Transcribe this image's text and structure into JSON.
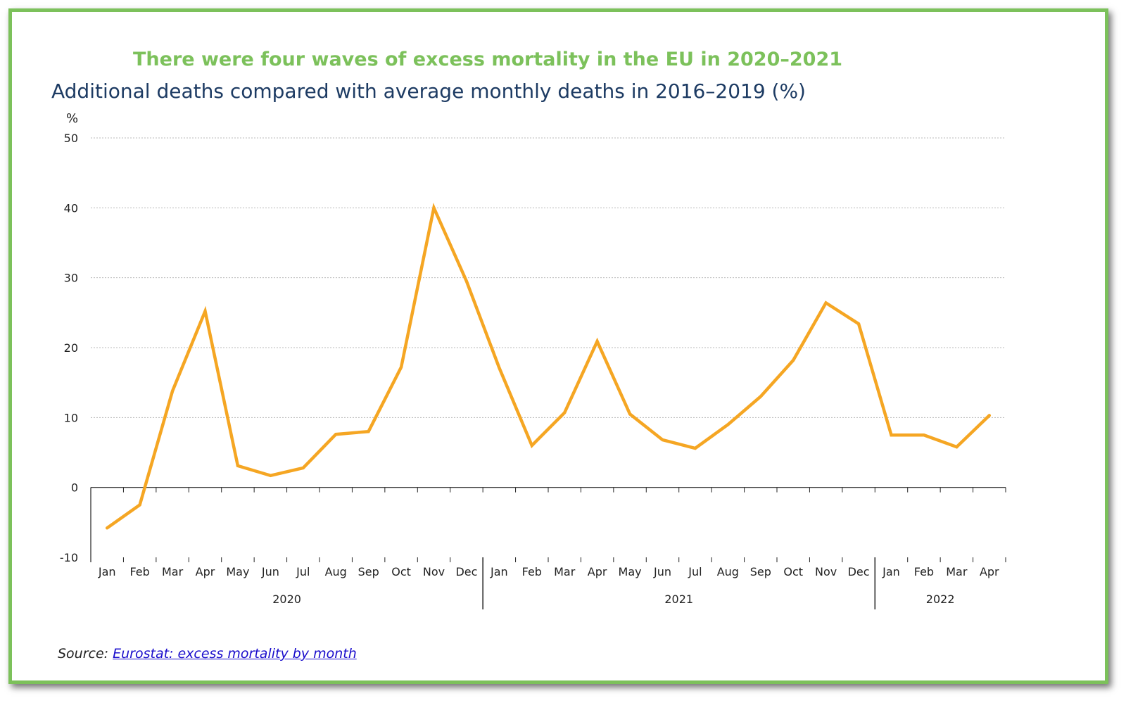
{
  "title": "There were four waves of excess mortality in the EU in 2020–2021",
  "subtitle": "Additional deaths compared with average monthly deaths in 2016–2019 (%)",
  "source": {
    "label": "Source:",
    "link_text": "Eurostat: excess mortality by month"
  },
  "colors": {
    "frame": "#7cc15b",
    "title": "#7cc15b",
    "subtitle": "#1d3b63",
    "line": "#f5a623",
    "grid": "#b8b8b8",
    "link": "#1a0dcc"
  },
  "chart_data": {
    "type": "line",
    "title": "There were four waves of excess mortality in the EU in 2020–2021",
    "ylabel": "%",
    "xlabel": "",
    "ylim": [
      -10,
      50
    ],
    "yticks": [
      -10,
      0,
      10,
      20,
      30,
      40,
      50
    ],
    "grid": true,
    "categories": [
      "Jan",
      "Feb",
      "Mar",
      "Apr",
      "May",
      "Jun",
      "Jul",
      "Aug",
      "Sep",
      "Oct",
      "Nov",
      "Dec",
      "Jan",
      "Feb",
      "Mar",
      "Apr",
      "May",
      "Jun",
      "Jul",
      "Aug",
      "Sep",
      "Oct",
      "Nov",
      "Dec",
      "Jan",
      "Feb",
      "Mar",
      "Apr"
    ],
    "year_groups": [
      {
        "label": "2020",
        "start": 0,
        "end": 11
      },
      {
        "label": "2021",
        "start": 12,
        "end": 23
      },
      {
        "label": "2022",
        "start": 24,
        "end": 27
      }
    ],
    "series": [
      {
        "values": [
          -5.8,
          -2.5,
          13.8,
          25.2,
          3.1,
          1.7,
          2.8,
          7.6,
          8.0,
          17.2,
          40.0,
          29.5,
          17.1,
          6.0,
          10.7,
          20.9,
          10.5,
          6.8,
          5.6,
          9.0,
          13.0,
          18.2,
          26.4,
          23.4,
          7.5,
          7.5,
          5.8,
          10.3
        ]
      }
    ]
  }
}
